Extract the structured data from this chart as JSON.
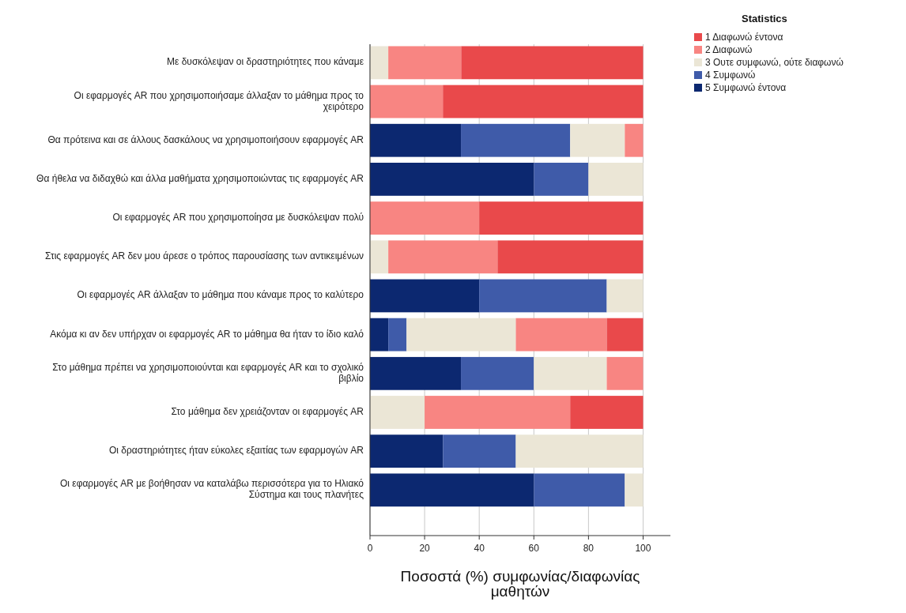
{
  "chart_data": {
    "type": "bar",
    "orientation": "horizontal",
    "stacked": true,
    "xlabel": "Ποσοστά (%) συμφωνίας/διαφωνίας μαθητών",
    "legend_title": "Statistics",
    "legend": "top right",
    "grid": "x",
    "categories": [
      "Με δυσκόλεψαν οι δραστηριότητες που κάναμε",
      "Οι εφαρμογές AR που χρησιμοποιήσαμε άλλαξαν το μάθημα προς το χειρότερο",
      "Θα πρότεινα και σε άλλους δασκάλους να χρησιμοποιήσουν εφαρμογές AR",
      "Θα ήθελα να διδαχθώ και άλλα μαθήματα χρησιμοποιώντας τις εφαρμογές AR",
      "Οι εφαρμογές AR που χρησιμοποίησα με δυσκόλεψαν πολύ",
      "Στις εφαρμογές AR δεν μου άρεσε ο τρόπος παρουσίασης των αντικειμένων",
      "Οι εφαρμογές AR άλλαξαν το μάθημα που κάναμε προς το καλύτερο",
      "Ακόμα κι αν δεν υπήρχαν οι εφαρμογές AR το μάθημα θα ήταν το ίδιο καλό",
      "Στο μάθημα πρέπει να χρησιμοποιούνται και εφαρμογές AR και το σχολικό βιβλίο",
      "Στο μάθημα δεν χρειάζονταν οι εφαρμογές AR",
      "Οι δραστηριότητες ήταν εύκολες εξαιτίας των εφαρμογών AR",
      "Οι εφαρμογές AR με βοήθησαν να καταλάβω περισσότερα για το Ηλιακό Σύστημα και τους πλανήτες"
    ],
    "xlim": [
      0,
      110
    ],
    "xticks": [
      0,
      20,
      40,
      60,
      80,
      100
    ],
    "series": [
      {
        "name": "5 Συμφωνώ έντονα",
        "color": "#0c2870",
        "values": [
          0,
          0,
          33.3,
          60,
          0,
          0,
          40,
          6.7,
          33.3,
          0,
          26.7,
          60
        ]
      },
      {
        "name": "4 Συμφωνώ",
        "color": "#3f5ba9",
        "values": [
          0,
          0,
          40,
          20,
          0,
          0,
          46.7,
          6.7,
          26.7,
          0,
          26.7,
          33.3
        ]
      },
      {
        "name": "3 Ουτε συμφωνώ, ούτε διαφωνώ",
        "color": "#ebe6d6",
        "values": [
          6.7,
          0,
          20,
          20,
          0,
          6.7,
          13.3,
          40,
          26.7,
          20,
          46.6,
          6.7
        ]
      },
      {
        "name": "2 Διαφωνώ",
        "color": "#f88582",
        "values": [
          26.7,
          26.7,
          6.7,
          0,
          40,
          40,
          0,
          33.3,
          13.3,
          53.3,
          0,
          0
        ]
      },
      {
        "name": "1 Διαφωνώ έντονα",
        "color": "#e9494b",
        "values": [
          66.6,
          73.3,
          0,
          0,
          60,
          53.3,
          0,
          13.3,
          0,
          26.7,
          0,
          0
        ]
      }
    ]
  }
}
